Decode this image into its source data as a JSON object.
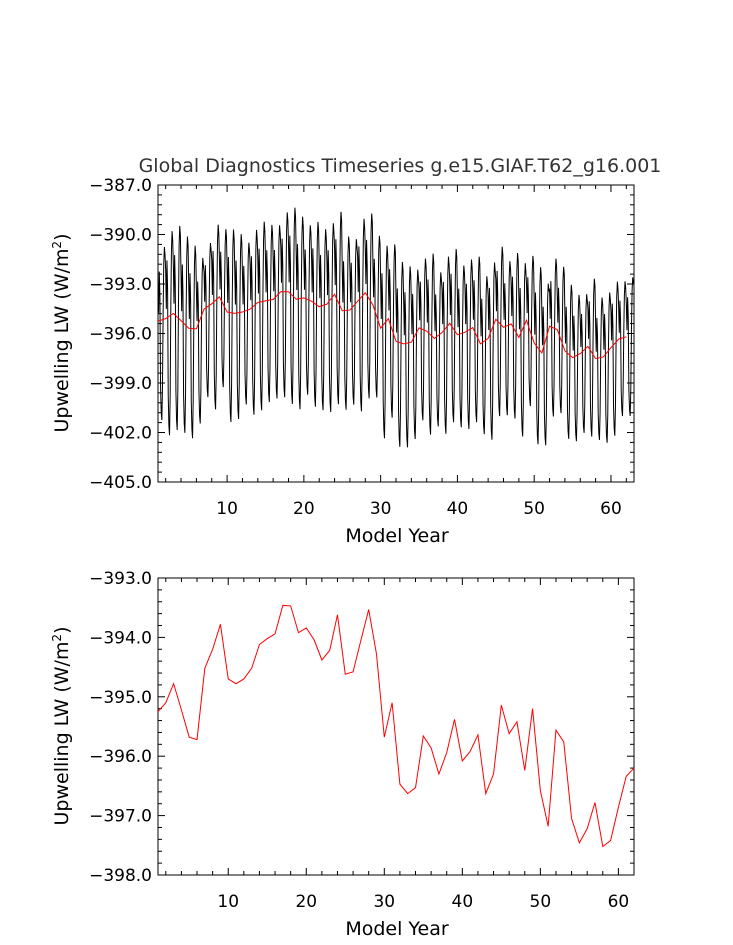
{
  "chart_data": [
    {
      "type": "line",
      "title": "Global Diagnostics Timeseries g.e15.GIAF.T62_g16.001",
      "xlabel": "Model Year",
      "ylabel": "Upwelling LW (W/m",
      "ylabel_sup": "2",
      "ylabel_close": ")",
      "xlim": [
        1,
        63
      ],
      "ylim": [
        -405.0,
        -387.0
      ],
      "xticks": [
        10,
        20,
        30,
        40,
        50,
        60
      ],
      "yticks": [
        -387.0,
        -390.0,
        -393.0,
        -396.0,
        -399.0,
        -402.0,
        -405.0
      ],
      "ytick_labels": [
        "−387.0",
        "−390.0",
        "−393.0",
        "−396.0",
        "−399.0",
        "−402.0",
        "−405.0"
      ],
      "series": [
        {
          "kind": "monthly",
          "color": "#000000",
          "annual_cycle_offsets": [
            2.5,
            0.5,
            3.0,
            1.5,
            -4.0,
            -5.5,
            -6.0,
            -4.0,
            0.5,
            3.5,
            4.5,
            4.0
          ],
          "year_peak": [
            4.5,
            5.3,
            5.3,
            5.1,
            5.0,
            4.3,
            4.0,
            4.8,
            4.1,
            5.0,
            4.8,
            4.2,
            4.8,
            4.9,
            4.6,
            4.5,
            4.8,
            5.1,
            5.0,
            4.4,
            4.8,
            4.7,
            4.9,
            5.0,
            4.5,
            4.3,
            5.0,
            4.8,
            4.2,
            5.0,
            4.5,
            4.8,
            4.7,
            4.4,
            4.2,
            4.7,
            4.0,
            4.6,
            4.5,
            4.2,
            4.4,
            4.3,
            4.1,
            4.6,
            4.4,
            4.0,
            4.3,
            4.5,
            3.9,
            4.6,
            4.2,
            4.1,
            3.8,
            4.0,
            3.8,
            3.6,
            4.1,
            3.7,
            3.9,
            4.0,
            3.5,
            3.6
          ]
        },
        {
          "kind": "annual",
          "color": "#ff0000",
          "x": [
            1,
            2,
            3,
            4,
            5,
            6,
            7,
            8,
            9,
            10,
            11,
            12,
            13,
            14,
            15,
            16,
            17,
            18,
            19,
            20,
            21,
            22,
            23,
            24,
            25,
            26,
            27,
            28,
            29,
            30,
            31,
            32,
            33,
            34,
            35,
            36,
            37,
            38,
            39,
            40,
            41,
            42,
            43,
            44,
            45,
            46,
            47,
            48,
            49,
            50,
            51,
            52,
            53,
            54,
            55,
            56,
            57,
            58,
            59,
            60,
            61,
            62
          ],
          "y": [
            -395.25,
            -395.1,
            -394.78,
            -395.22,
            -395.68,
            -395.72,
            -394.52,
            -394.2,
            -393.78,
            -394.7,
            -394.78,
            -394.7,
            -394.52,
            -394.12,
            -394.02,
            -393.94,
            -393.46,
            -393.47,
            -393.92,
            -393.84,
            -394.04,
            -394.38,
            -394.22,
            -393.62,
            -394.62,
            -394.58,
            -394.05,
            -393.53,
            -394.28,
            -395.68,
            -395.1,
            -396.47,
            -396.63,
            -396.53,
            -395.66,
            -395.86,
            -396.3,
            -395.94,
            -395.38,
            -396.08,
            -395.92,
            -395.64,
            -396.63,
            -396.3,
            -395.14,
            -395.62,
            -395.42,
            -396.24,
            -395.2,
            -396.58,
            -397.18,
            -395.56,
            -395.76,
            -397.05,
            -397.46,
            -397.22,
            -396.78,
            -397.52,
            -397.42,
            -396.86,
            -396.34,
            -396.2
          ]
        }
      ]
    },
    {
      "type": "line",
      "xlabel": "Model Year",
      "ylabel": "Upwelling LW (W/m",
      "ylabel_sup": "2",
      "ylabel_close": ")",
      "xlim": [
        1,
        62
      ],
      "ylim": [
        -398.0,
        -393.0
      ],
      "xticks": [
        10,
        20,
        30,
        40,
        50,
        60
      ],
      "yticks": [
        -393.0,
        -394.0,
        -395.0,
        -396.0,
        -397.0,
        -398.0
      ],
      "ytick_labels": [
        "−393.0",
        "−394.0",
        "−395.0",
        "−396.0",
        "−397.0",
        "−398.0"
      ],
      "series": [
        {
          "kind": "annual",
          "color": "#ff0000",
          "x": [
            1,
            2,
            3,
            4,
            5,
            6,
            7,
            8,
            9,
            10,
            11,
            12,
            13,
            14,
            15,
            16,
            17,
            18,
            19,
            20,
            21,
            22,
            23,
            24,
            25,
            26,
            27,
            28,
            29,
            30,
            31,
            32,
            33,
            34,
            35,
            36,
            37,
            38,
            39,
            40,
            41,
            42,
            43,
            44,
            45,
            46,
            47,
            48,
            49,
            50,
            51,
            52,
            53,
            54,
            55,
            56,
            57,
            58,
            59,
            60,
            61,
            62
          ],
          "y": [
            -395.25,
            -395.1,
            -394.78,
            -395.22,
            -395.68,
            -395.72,
            -394.52,
            -394.2,
            -393.78,
            -394.7,
            -394.78,
            -394.7,
            -394.52,
            -394.12,
            -394.02,
            -393.94,
            -393.46,
            -393.47,
            -393.92,
            -393.84,
            -394.04,
            -394.38,
            -394.22,
            -393.62,
            -394.62,
            -394.58,
            -394.05,
            -393.53,
            -394.28,
            -395.68,
            -395.1,
            -396.47,
            -396.63,
            -396.53,
            -395.66,
            -395.86,
            -396.3,
            -395.94,
            -395.38,
            -396.08,
            -395.92,
            -395.64,
            -396.63,
            -396.3,
            -395.14,
            -395.62,
            -395.42,
            -396.24,
            -395.2,
            -396.58,
            -397.18,
            -395.56,
            -395.76,
            -397.05,
            -397.46,
            -397.22,
            -396.78,
            -397.52,
            -397.42,
            -396.86,
            -396.34,
            -396.2
          ]
        }
      ]
    }
  ]
}
